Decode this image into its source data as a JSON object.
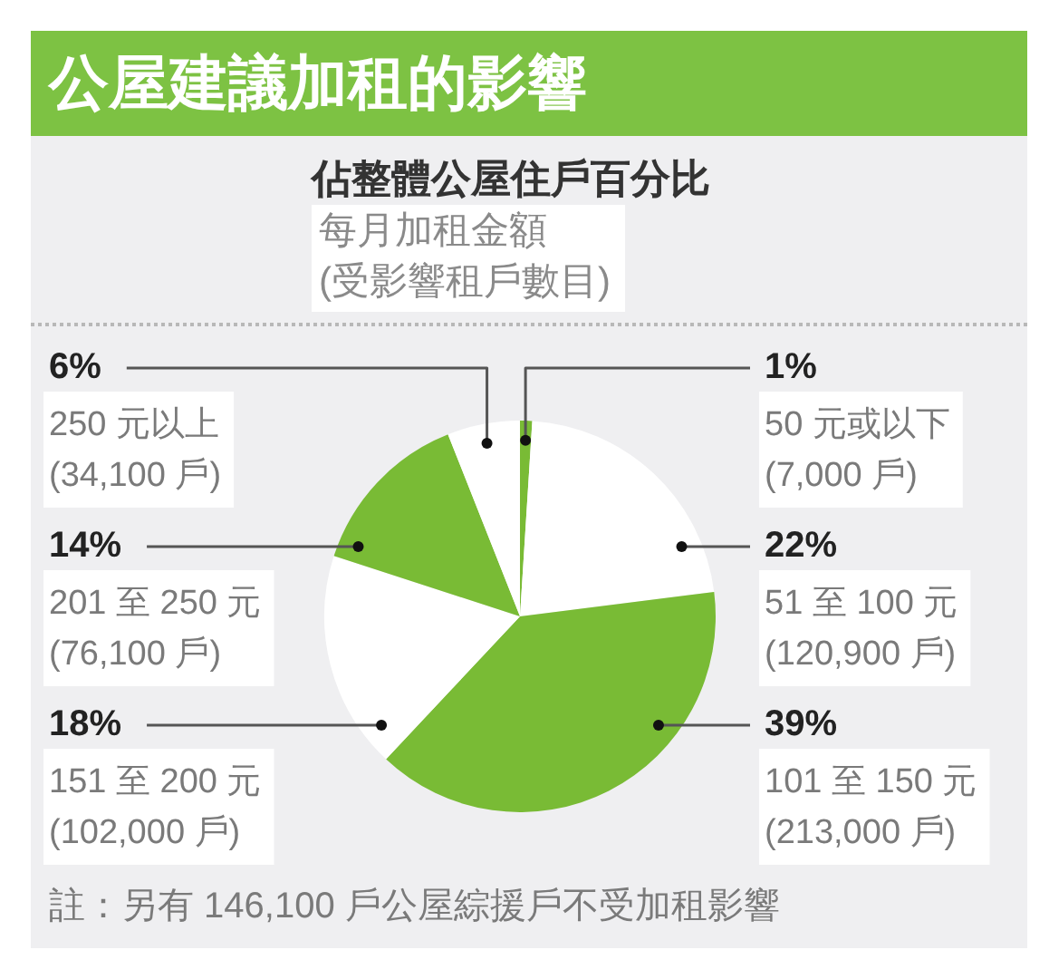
{
  "chart_data": {
    "type": "pie",
    "title": "公屋建議加租的影響",
    "subtitle": "佔整體公屋住戶百分比",
    "categories": [
      "50 元或以下\n(7,000 戶)",
      "51 至 100 元\n(120,900 戶)",
      "101 至 150 元\n(213,000 戶)",
      "151 至 200 元\n(102,000 戶)",
      "201 至 250 元\n(76,100 戶)",
      "250 元以上\n(34,100 戶)"
    ],
    "values": [
      1,
      22,
      39,
      18,
      14,
      6
    ],
    "value_labels": [
      "1%",
      "22%",
      "39%",
      "18%",
      "14%",
      "6%"
    ],
    "colors": [
      "#79bb35",
      "#ffffff",
      "#79bb35",
      "#ffffff",
      "#79bb35",
      "#ffffff"
    ],
    "annotations": [
      "每月加租金額\n(受影響租戶數目)",
      "註：另有 146,100 戶公屋綜援戶不受加租影響"
    ]
  }
}
